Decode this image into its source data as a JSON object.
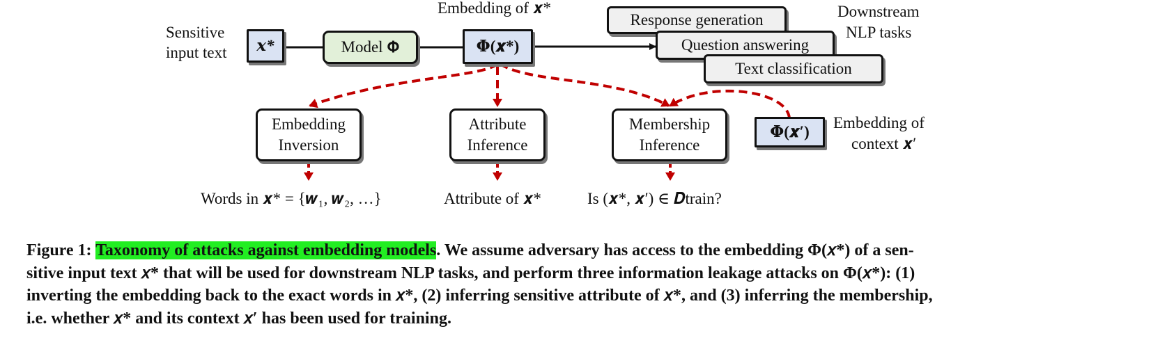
{
  "figure": {
    "top_label_embedding": "Embedding of 𝒙*",
    "sensitive_label_line1": "Sensitive",
    "sensitive_label_line2": "input text",
    "input_box": "𝒙*",
    "model_box": "Model 𝚽",
    "embedding_box": "𝚽(𝒙*)",
    "tasks": [
      "Response generation",
      "Question answering",
      "Text classification"
    ],
    "downstream_line1": "Downstream",
    "downstream_line2": "NLP tasks",
    "attacks": [
      {
        "line1": "Embedding",
        "line2": "Inversion",
        "result": "Words in 𝒙* = {𝒘₁, 𝒘₂, …}"
      },
      {
        "line1": "Attribute",
        "line2": "Inference",
        "result": "Attribute of 𝒙*"
      },
      {
        "line1": "Membership",
        "line2": "Inference",
        "result": "Is (𝒙*, 𝒙′) ∈ 𝑫train?"
      }
    ],
    "context_box": "𝚽(𝒙′)",
    "context_label_line1": "Embedding  of",
    "context_label_line2": "context 𝒙′"
  },
  "caption": {
    "prefix": "Figure 1: ",
    "highlight": "Taxonomy of attacks against embedding models",
    "line1_rest": ". We assume adversary has access to the embedding Φ(𝑥*) of a sen-",
    "line2": "sitive input text 𝑥* that will be used for downstream NLP tasks, and perform three information leakage attacks on Φ(𝑥*): (1)",
    "line3": "inverting the embedding back to the exact words in 𝑥*, (2) inferring sensitive attribute of 𝑥*, and (3) inferring the membership,",
    "line4": "i.e. whether 𝑥* and its context 𝑥′ has been used for training."
  },
  "colors": {
    "arrow_red": "#c00000",
    "highlight_green": "#22ee22",
    "box_blue": "#dae3f3",
    "box_green": "#e2f0d9"
  }
}
